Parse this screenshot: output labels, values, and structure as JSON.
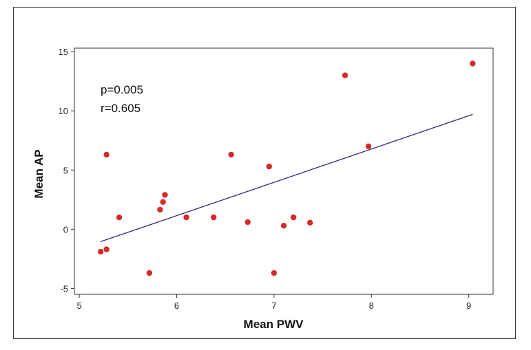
{
  "chart_data": {
    "type": "scatter",
    "title": "",
    "xlabel": "Mean PWV",
    "ylabel": "Mean  AP",
    "xlim": [
      4.95,
      9.25
    ],
    "ylim": [
      -5.5,
      15.3
    ],
    "xticks": [
      5,
      6,
      7,
      8,
      9
    ],
    "yticks": [
      -5,
      0,
      5,
      10,
      15
    ],
    "xtick_labels": [
      "5",
      "6",
      "7",
      "8",
      "9"
    ],
    "ytick_labels": [
      "-5",
      "0",
      "5",
      "10",
      "15"
    ],
    "grid": false,
    "colors": {
      "point": "#d62a2a",
      "line": "#2b2b7a",
      "axis": "#333333"
    },
    "series": [
      {
        "name": "observations",
        "points": [
          {
            "x": 5.22,
            "y": -1.9
          },
          {
            "x": 5.28,
            "y": -1.7
          },
          {
            "x": 5.28,
            "y": 6.3
          },
          {
            "x": 5.41,
            "y": 1.0
          },
          {
            "x": 5.72,
            "y": -3.7
          },
          {
            "x": 5.83,
            "y": 1.65
          },
          {
            "x": 5.86,
            "y": 2.3
          },
          {
            "x": 5.88,
            "y": 2.9
          },
          {
            "x": 6.1,
            "y": 1.0
          },
          {
            "x": 6.38,
            "y": 1.0
          },
          {
            "x": 6.56,
            "y": 6.3
          },
          {
            "x": 6.73,
            "y": 0.6
          },
          {
            "x": 6.95,
            "y": 5.3
          },
          {
            "x": 7.0,
            "y": -3.7
          },
          {
            "x": 7.1,
            "y": 0.3
          },
          {
            "x": 7.2,
            "y": 1.0
          },
          {
            "x": 7.37,
            "y": 0.55
          },
          {
            "x": 7.73,
            "y": 13.0
          },
          {
            "x": 7.97,
            "y": 7.0
          },
          {
            "x": 9.04,
            "y": 14.0
          }
        ]
      }
    ],
    "fit_line": {
      "x1": 5.22,
      "y1": -1.05,
      "x2": 9.04,
      "y2": 9.7
    },
    "annotations": [
      "p=0.005",
      "r=0.605"
    ]
  }
}
